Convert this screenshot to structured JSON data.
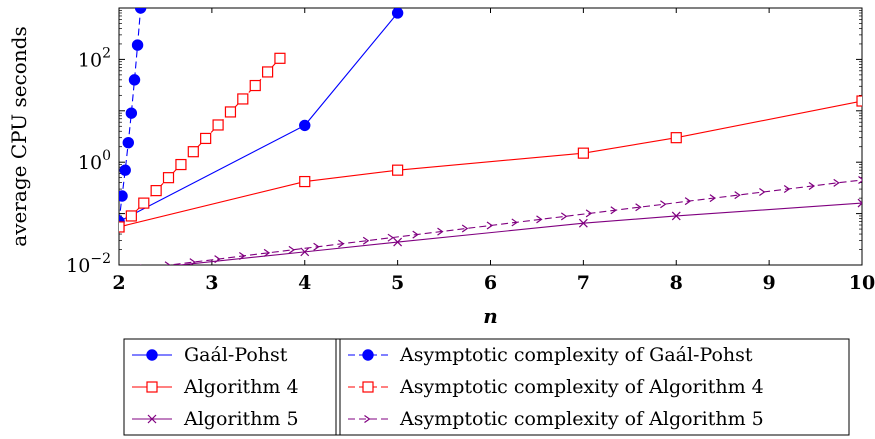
{
  "chart_data": {
    "type": "line",
    "title": "",
    "xlabel": "n",
    "ylabel": "average CPU seconds",
    "xlim": [
      2,
      10
    ],
    "ylim": [
      0.01,
      1000
    ],
    "yscale": "log",
    "xticks": [
      "2",
      "3",
      "4",
      "5",
      "6",
      "7",
      "8",
      "9",
      "10"
    ],
    "yticks": [
      {
        "value": 0.01,
        "base": "10",
        "exp": "−2"
      },
      {
        "value": 1,
        "base": "10",
        "exp": "0"
      },
      {
        "value": 100,
        "base": "10",
        "exp": "2"
      }
    ],
    "grid": false,
    "legend_position": "bottom",
    "series": [
      {
        "name": "Gaál-Pohst",
        "color": "#0000ff",
        "style": "solid",
        "marker": "dot",
        "x": [
          2,
          4,
          5
        ],
        "y": [
          0.07,
          5.2,
          800
        ]
      },
      {
        "name": "Algorithm 4",
        "color": "#ff0000",
        "style": "solid",
        "marker": "square",
        "x": [
          2,
          4,
          5,
          7,
          8,
          10
        ],
        "y": [
          0.055,
          0.42,
          0.7,
          1.5,
          3.0,
          15.5
        ]
      },
      {
        "name": "Algorithm 5",
        "color": "#800080",
        "style": "solid",
        "marker": "x",
        "x": [
          2,
          4,
          5,
          7,
          8,
          10
        ],
        "y": [
          0.0075,
          0.018,
          0.028,
          0.065,
          0.09,
          0.16
        ]
      },
      {
        "name": "Asymptotic complexity of Gaál-Pohst",
        "color": "#0000ff",
        "style": "dashed",
        "marker": "dot",
        "x": [
          2,
          2.033,
          2.067,
          2.1,
          2.133,
          2.167,
          2.2,
          2.233,
          2.267
        ],
        "y": [
          0.07,
          0.22,
          0.7,
          2.4,
          9,
          40,
          190,
          1000,
          5000
        ]
      },
      {
        "name": "Asymptotic complexity of Algorithm 4",
        "color": "#ff0000",
        "style": "dashed",
        "marker": "square",
        "x": [
          2,
          2.133,
          2.267,
          2.4,
          2.533,
          2.667,
          2.8,
          2.933,
          3.067,
          3.2,
          3.333,
          3.467,
          3.6,
          3.733
        ],
        "y": [
          0.055,
          0.09,
          0.16,
          0.28,
          0.5,
          0.9,
          1.6,
          2.9,
          5.3,
          9.5,
          17,
          31,
          57,
          105
        ]
      },
      {
        "name": "Asymptotic complexity of Algorithm 5",
        "color": "#800080",
        "style": "dashed",
        "marker": "arrow",
        "x": [
          2,
          2.267,
          2.533,
          2.8,
          3.067,
          3.333,
          3.6,
          3.867,
          4.133,
          4.4,
          4.667,
          4.933,
          5.2,
          5.467,
          5.733,
          6,
          6.267,
          6.533,
          6.8,
          7.067,
          7.333,
          7.6,
          7.867,
          8.133,
          8.4,
          8.667,
          8.933,
          9.2,
          9.467,
          9.733,
          10
        ],
        "y": [
          0.0075,
          0.0086,
          0.0099,
          0.0114,
          0.013,
          0.015,
          0.0172,
          0.0197,
          0.0226,
          0.0259,
          0.0297,
          0.034,
          0.039,
          0.0447,
          0.0512,
          0.0587,
          0.0673,
          0.0771,
          0.0883,
          0.101,
          0.116,
          0.133,
          0.152,
          0.175,
          0.2,
          0.229,
          0.263,
          0.301,
          0.345,
          0.396,
          0.45
        ]
      }
    ],
    "legend_columns": [
      [
        "Gaál-Pohst",
        "Algorithm 4",
        "Algorithm 5"
      ],
      [
        "Asymptotic complexity of Gaál-Pohst",
        "Asymptotic complexity of Algorithm 4",
        "Asymptotic complexity of Algorithm 5"
      ]
    ]
  }
}
